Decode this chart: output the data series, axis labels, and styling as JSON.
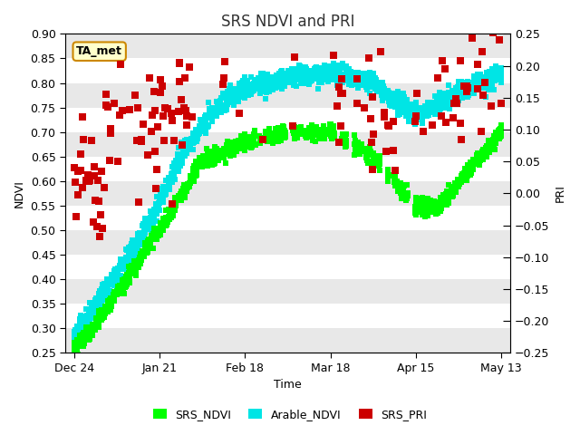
{
  "title": "SRS NDVI and PRI",
  "xlabel": "Time",
  "ylabel_left": "NDVI",
  "ylabel_right": "PRI",
  "ylim_left": [
    0.25,
    0.9
  ],
  "ylim_right": [
    -0.25,
    0.25
  ],
  "yticks_left": [
    0.25,
    0.3,
    0.35,
    0.4,
    0.45,
    0.5,
    0.55,
    0.6,
    0.65,
    0.7,
    0.75,
    0.8,
    0.85,
    0.9
  ],
  "yticks_right": [
    -0.25,
    -0.2,
    -0.15,
    -0.1,
    -0.05,
    0.0,
    0.05,
    0.1,
    0.15,
    0.2,
    0.25
  ],
  "xtick_labels": [
    "Dec 24",
    "Jan 21",
    "Feb 18",
    "Mar 18",
    "Apr 15",
    "May 13"
  ],
  "color_srs_ndvi": "#00ff00",
  "color_arable_ndvi": "#00e5e5",
  "color_srs_pri": "#cc0000",
  "annotation_text": "TA_met",
  "annotation_bg": "#ffffcc",
  "annotation_edgecolor": "#cc8800",
  "bg_color": "#e8e8e8",
  "alt_bg_color": "#f0f0f0",
  "legend_labels": [
    "SRS_NDVI",
    "Arable_NDVI",
    "SRS_PRI"
  ],
  "marker_size": 25,
  "title_fontsize": 12,
  "axis_fontsize": 9,
  "tick_fontsize": 9
}
